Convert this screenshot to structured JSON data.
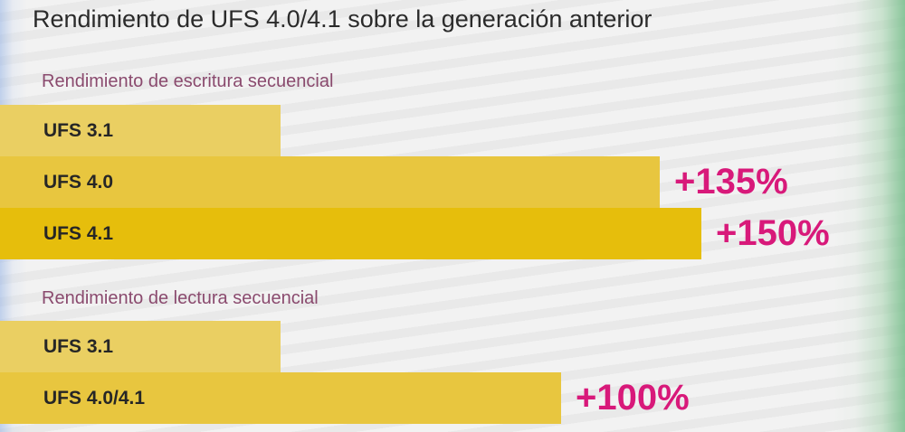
{
  "chart_data": {
    "type": "bar",
    "title": "Rendimiento de UFS 4.0/4.1 sobre la generación anterior",
    "groups": [
      {
        "label": "Rendimiento de escritura secuencial",
        "categories": [
          "UFS 3.1",
          "UFS 4.0",
          "UFS 4.1"
        ],
        "values": [
          100,
          235,
          250
        ],
        "annotations": [
          "",
          "+135%",
          "+150%"
        ],
        "colors": [
          "#eacf62",
          "#e8c63f",
          "#e6be0c"
        ]
      },
      {
        "label": "Rendimiento de lectura secuencial",
        "categories": [
          "UFS 3.1",
          "UFS 4.0/4.1"
        ],
        "values": [
          100,
          200
        ],
        "annotations": [
          "",
          "+100%"
        ],
        "colors": [
          "#eacf62",
          "#e8c63f"
        ]
      }
    ]
  }
}
